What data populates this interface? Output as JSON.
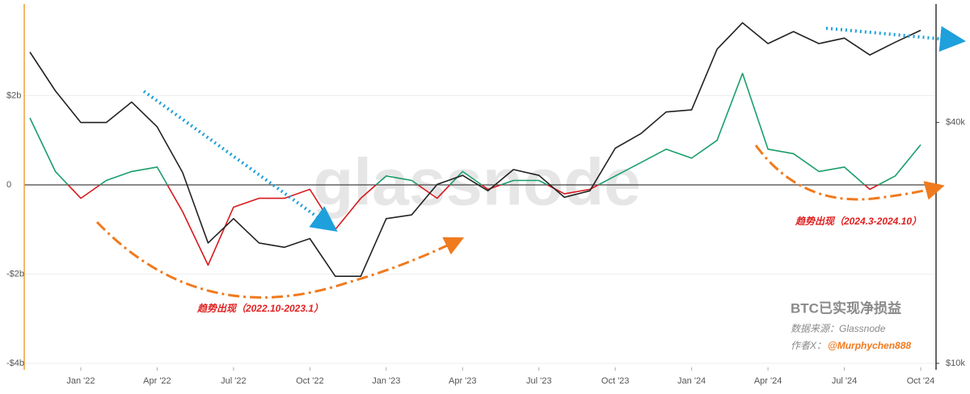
{
  "chart_data": {
    "type": "line",
    "title": "BTC已实现净损益",
    "source": "数据来源：Glassnode",
    "author_label": "作者X：",
    "author": "@Murphychen888",
    "watermark": "glassnode",
    "annotations": [
      "趋势出现（2022.10-2023.1）",
      "趋势出现（2024.3-2024.10）"
    ],
    "x": [
      "2021-11",
      "2021-12",
      "2022-01",
      "2022-02",
      "2022-03",
      "2022-04",
      "2022-05",
      "2022-06",
      "2022-07",
      "2022-08",
      "2022-09",
      "2022-10",
      "2022-11",
      "2022-12",
      "2023-01",
      "2023-02",
      "2023-03",
      "2023-04",
      "2023-05",
      "2023-06",
      "2023-07",
      "2023-08",
      "2023-09",
      "2023-10",
      "2023-11",
      "2023-12",
      "2024-01",
      "2024-02",
      "2024-03",
      "2024-04",
      "2024-05",
      "2024-06",
      "2024-07",
      "2024-08",
      "2024-09",
      "2024-10"
    ],
    "xlim": [
      "2021-11",
      "2024-10"
    ],
    "xticks": [
      {
        "value": "2022-01",
        "label": "Jan '22"
      },
      {
        "value": "2022-04",
        "label": "Apr '22"
      },
      {
        "value": "2022-07",
        "label": "Jul '22"
      },
      {
        "value": "2022-10",
        "label": "Oct '22"
      },
      {
        "value": "2023-01",
        "label": "Jan '23"
      },
      {
        "value": "2023-04",
        "label": "Apr '23"
      },
      {
        "value": "2023-07",
        "label": "Jul '23"
      },
      {
        "value": "2023-10",
        "label": "Oct '23"
      },
      {
        "value": "2024-01",
        "label": "Jan '24"
      },
      {
        "value": "2024-04",
        "label": "Apr '24"
      },
      {
        "value": "2024-07",
        "label": "Jul '24"
      },
      {
        "value": "2024-10",
        "label": "Oct '24"
      }
    ],
    "ylim": [
      -4000000000,
      4000000000
    ],
    "yticks": [
      {
        "value": 2000000000,
        "label": "$2b"
      },
      0,
      {
        "value": -2000000000,
        "label": "-$2b"
      },
      {
        "value": -4000000000,
        "label": "-$4b"
      }
    ],
    "y2lim": [
      10000,
      78000
    ],
    "y2_scale": "log",
    "y2ticks": [
      {
        "value": 40000,
        "label": "$40k"
      },
      {
        "value": 10000,
        "label": "$10k"
      }
    ],
    "grid": true,
    "series": [
      {
        "color_positive": "#1a9e6a",
        "color_negative": "#d7191c",
        "values": [
          1500000000,
          300000000,
          -300000000,
          100000000,
          300000000,
          400000000,
          -600000000,
          -1800000000,
          -500000000,
          -300000000,
          -300000000,
          -100000000,
          -1000000000,
          -300000000,
          200000000,
          100000000,
          -300000000,
          300000000,
          -100000000,
          100000000,
          100000000,
          -200000000,
          -100000000,
          200000000,
          500000000,
          800000000,
          600000000,
          1000000000,
          2500000000,
          800000000,
          700000000,
          300000000,
          400000000,
          -100000000,
          200000000,
          900000000
        ]
      },
      {
        "color": "#222222",
        "axis": "y2",
        "values": [
          60000,
          48000,
          40000,
          40000,
          45000,
          39000,
          30000,
          20000,
          23000,
          20000,
          19500,
          20500,
          16500,
          16500,
          23000,
          23500,
          28000,
          29500,
          27000,
          30500,
          29500,
          26000,
          27000,
          34500,
          37500,
          42500,
          43000,
          61000,
          71000,
          63000,
          67500,
          63000,
          65000,
          59000,
          63500,
          68000
        ]
      }
    ]
  }
}
